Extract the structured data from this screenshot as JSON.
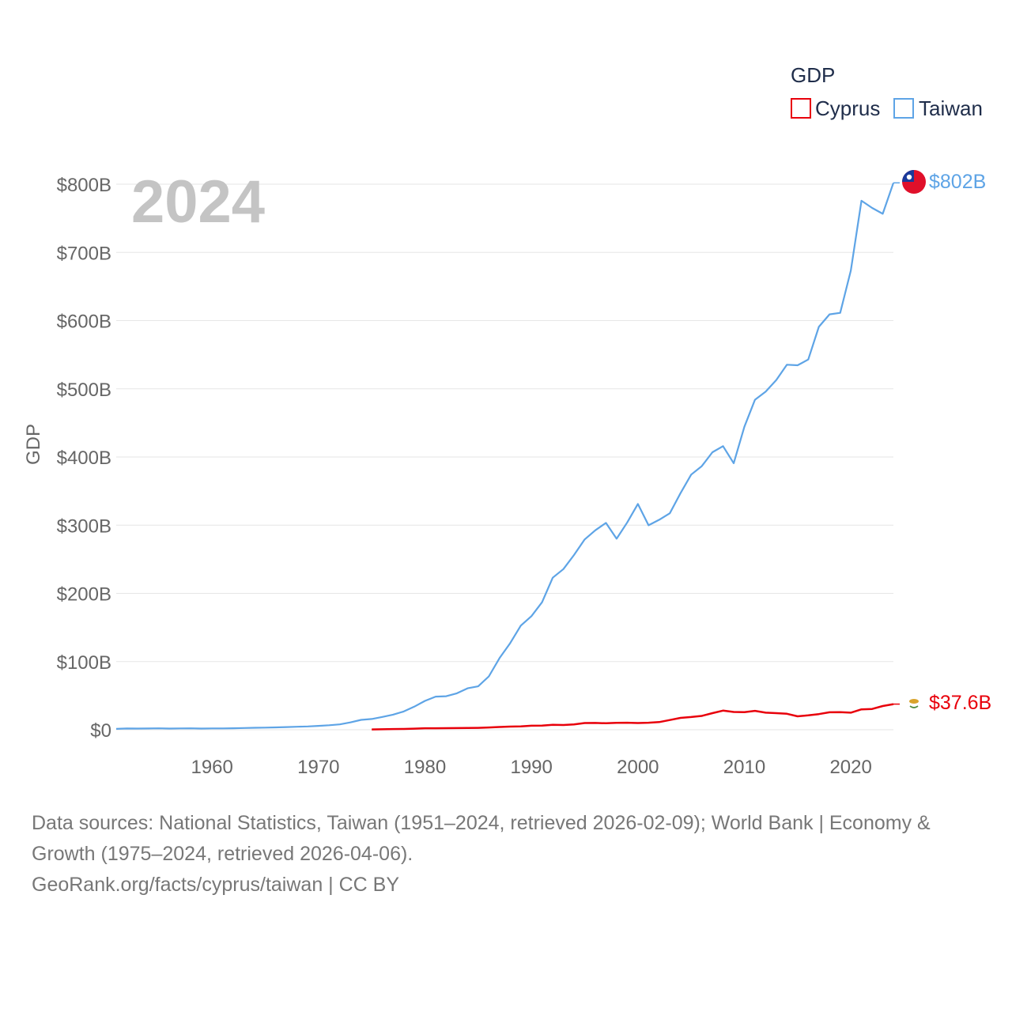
{
  "chart_data": {
    "type": "line",
    "title": "GDP",
    "year_label": "2024",
    "ylabel": "GDP",
    "xlabel": "",
    "xlim": [
      1951,
      2024
    ],
    "ylim": [
      0,
      800
    ],
    "y_unit": "billion USD",
    "y_ticks": [
      0,
      100,
      200,
      300,
      400,
      500,
      600,
      700,
      800
    ],
    "y_tick_labels": [
      "$0",
      "$100B",
      "$200B",
      "$300B",
      "$400B",
      "$500B",
      "$600B",
      "$700B",
      "$800B"
    ],
    "x_ticks": [
      1960,
      1970,
      1980,
      1990,
      2000,
      2010,
      2020
    ],
    "x_tick_labels": [
      "1960",
      "1970",
      "1980",
      "1990",
      "2000",
      "2010",
      "2020"
    ],
    "grid": true,
    "legend": {
      "title": "GDP",
      "position": "top-right",
      "entries": [
        "Cyprus",
        "Taiwan"
      ]
    },
    "series": [
      {
        "name": "Taiwan",
        "color": "#5ea4e6",
        "end_label": "$802B",
        "end_icon": "taiwan-flag-icon",
        "x": [
          1951,
          1952,
          1953,
          1954,
          1955,
          1956,
          1957,
          1958,
          1959,
          1960,
          1961,
          1962,
          1963,
          1964,
          1965,
          1966,
          1967,
          1968,
          1969,
          1970,
          1971,
          1972,
          1973,
          1974,
          1975,
          1976,
          1977,
          1978,
          1979,
          1980,
          1981,
          1982,
          1983,
          1984,
          1985,
          1986,
          1987,
          1988,
          1989,
          1990,
          1991,
          1992,
          1993,
          1994,
          1995,
          1996,
          1997,
          1998,
          1999,
          2000,
          2001,
          2002,
          2003,
          2004,
          2005,
          2006,
          2007,
          2008,
          2009,
          2010,
          2011,
          2012,
          2013,
          2014,
          2015,
          2016,
          2017,
          2018,
          2019,
          2020,
          2021,
          2022,
          2023,
          2024
        ],
        "values": [
          1.3,
          1.8,
          1.7,
          1.9,
          2.1,
          1.7,
          2.0,
          2.1,
          1.7,
          2.0,
          2.0,
          2.2,
          2.5,
          2.9,
          3.1,
          3.5,
          3.9,
          4.4,
          4.9,
          5.7,
          6.6,
          7.9,
          10.8,
          14.5,
          15.8,
          18.8,
          22.1,
          26.8,
          33.9,
          42.3,
          48.6,
          49.2,
          53.5,
          60.8,
          63.6,
          78.3,
          105.0,
          126.8,
          152.7,
          166.6,
          187.0,
          222.9,
          235.6,
          256.2,
          279.1,
          292.5,
          303.3,
          280.1,
          304.1,
          331.1,
          299.8,
          307.9,
          317.4,
          346.9,
          374.1,
          386.5,
          406.9,
          415.9,
          390.8,
          444.3,
          483.9,
          495.8,
          512.9,
          535.3,
          534.5,
          543.0,
          590.8,
          609.2,
          611.4,
          673.2,
          775.8,
          765.2,
          756.6,
          802.0
        ]
      },
      {
        "name": "Cyprus",
        "color": "#e8000b",
        "end_label": "$37.6B",
        "end_icon": "cyprus-flag-icon",
        "x": [
          1975,
          1976,
          1977,
          1978,
          1979,
          1980,
          1981,
          1982,
          1983,
          1984,
          1985,
          1986,
          1987,
          1988,
          1989,
          1990,
          1991,
          1992,
          1993,
          1994,
          1995,
          1996,
          1997,
          1998,
          1999,
          2000,
          2001,
          2002,
          2003,
          2004,
          2005,
          2006,
          2007,
          2008,
          2009,
          2010,
          2011,
          2012,
          2013,
          2014,
          2015,
          2016,
          2017,
          2018,
          2019,
          2020,
          2021,
          2022,
          2023,
          2024
        ],
        "values": [
          0.5,
          0.7,
          1.0,
          1.2,
          1.6,
          2.2,
          2.2,
          2.3,
          2.4,
          2.6,
          2.8,
          3.4,
          4.0,
          4.6,
          4.9,
          5.9,
          6.1,
          7.3,
          6.9,
          7.8,
          9.9,
          10.0,
          9.5,
          10.1,
          10.3,
          9.8,
          10.3,
          11.2,
          14.3,
          17.4,
          18.7,
          20.3,
          24.4,
          28.1,
          26.1,
          25.8,
          27.7,
          25.1,
          24.3,
          23.4,
          19.7,
          21.1,
          22.9,
          25.6,
          25.8,
          25.0,
          29.9,
          30.5,
          34.8,
          37.6
        ]
      }
    ]
  },
  "footer": {
    "sources_line1": "Data sources: National Statistics, Taiwan (1951–2024, retrieved 2026-02-09); World Bank | Economy &",
    "sources_line2": "Growth (1975–2024, retrieved 2026-04-06).",
    "attribution": "GeoRank.org/facts/cyprus/taiwan | CC BY"
  }
}
